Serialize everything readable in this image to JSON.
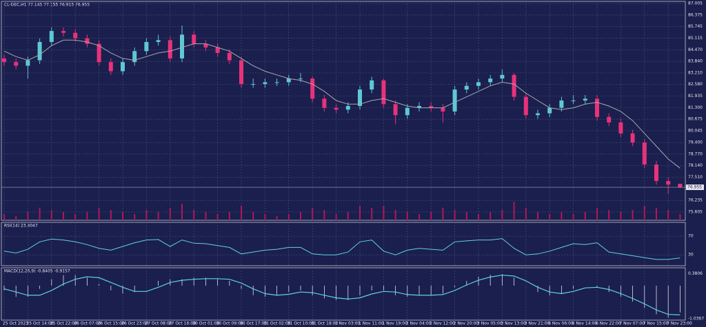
{
  "chart_data": {
    "type": "candlestick",
    "title": "CL-DEC,H1  77.145 77.155 76.915 76.955",
    "categories": [
      "25 Oct 2023",
      null,
      "25 Oct 14:00",
      null,
      "25 Oct 22:00",
      null,
      "26 Oct 07:00",
      null,
      "26 Oct 15:00",
      null,
      "26 Oct 23:00",
      null,
      "27 Oct 08:00",
      null,
      "27 Oct 16:00",
      null,
      "30 Oct 01:00",
      null,
      "30 Oct 09:00",
      null,
      "30 Oct 17:00",
      null,
      "31 Oct 02:00",
      null,
      "31 Oct 10:00",
      null,
      "31 Oct 18:00",
      null,
      "1 Nov 03:00",
      null,
      "1 Nov 11:00",
      null,
      "1 Nov 19:00",
      null,
      "2 Nov 04:00",
      null,
      "2 Nov 12:00",
      null,
      "2 Nov 20:00",
      null,
      "3 Nov 05:00",
      null,
      "3 Nov 13:00",
      null,
      "3 Nov 21:00",
      null,
      "6 Nov 06:00",
      null,
      "6 Nov 14:00",
      null,
      "6 Nov 22:00",
      null,
      "7 Nov 07:00",
      null,
      "7 Nov 15:00",
      null,
      "7 Nov 23:00",
      null
    ],
    "open": [
      84.0,
      83.8,
      83.6,
      83.9,
      84.9,
      85.5,
      85.4,
      85.1,
      84.8,
      83.8,
      83.3,
      83.8,
      84.4,
      84.9,
      85.0,
      84.0,
      85.3,
      84.8,
      84.6,
      84.3,
      83.9,
      82.6,
      82.6,
      82.7,
      82.7,
      82.9,
      82.9,
      81.8,
      81.3,
      81.2,
      81.4,
      82.3,
      82.8,
      81.5,
      80.9,
      81.3,
      81.4,
      81.3,
      81.1,
      82.3,
      82.5,
      82.7,
      82.9,
      83.1,
      81.9,
      80.9,
      81.0,
      81.3,
      81.7,
      81.7,
      81.8,
      80.8,
      80.5,
      79.9,
      79.4,
      78.2,
      77.3,
      77.145
    ],
    "high": [
      84.2,
      84.0,
      84.1,
      85.1,
      85.7,
      85.7,
      85.6,
      85.3,
      85.0,
      84.0,
      84.0,
      84.6,
      85.1,
      85.3,
      85.2,
      85.8,
      85.5,
      85.0,
      84.8,
      84.5,
      84.1,
      82.9,
      82.9,
      82.9,
      83.1,
      83.2,
      83.0,
      82.0,
      81.5,
      81.6,
      82.5,
      83.0,
      82.9,
      81.7,
      81.5,
      81.6,
      81.6,
      81.5,
      82.5,
      82.7,
      82.9,
      83.1,
      83.4,
      83.2,
      82.1,
      81.2,
      81.5,
      81.9,
      82.0,
      82.0,
      82.0,
      81.0,
      80.7,
      80.1,
      79.6,
      78.4,
      77.5,
      77.155
    ],
    "low": [
      83.6,
      83.4,
      82.9,
      83.7,
      84.7,
      85.2,
      84.9,
      84.6,
      83.6,
      83.1,
      83.1,
      83.6,
      84.2,
      84.7,
      83.8,
      83.8,
      84.6,
      84.4,
      84.1,
      83.7,
      82.4,
      82.4,
      82.4,
      82.5,
      82.5,
      82.7,
      81.6,
      81.1,
      81.0,
      81.0,
      81.2,
      82.1,
      81.3,
      80.4,
      80.7,
      81.1,
      81.1,
      80.5,
      80.9,
      82.1,
      82.3,
      82.5,
      82.7,
      81.7,
      80.7,
      80.7,
      80.8,
      81.1,
      81.5,
      81.5,
      80.6,
      80.3,
      79.7,
      79.2,
      78.0,
      77.1,
      76.6,
      76.915
    ],
    "close": [
      83.8,
      83.6,
      83.9,
      84.9,
      85.5,
      85.4,
      85.1,
      84.8,
      83.8,
      83.3,
      83.8,
      84.4,
      84.9,
      85.0,
      84.0,
      85.3,
      84.8,
      84.6,
      84.3,
      83.9,
      82.6,
      82.6,
      82.7,
      82.7,
      82.9,
      82.9,
      81.8,
      81.3,
      81.2,
      81.4,
      82.3,
      82.8,
      81.5,
      80.9,
      81.3,
      81.4,
      81.3,
      81.1,
      82.3,
      82.5,
      82.7,
      82.9,
      83.1,
      81.9,
      80.9,
      81.0,
      81.3,
      81.7,
      81.7,
      81.8,
      80.8,
      80.5,
      79.9,
      79.4,
      78.2,
      77.3,
      77.1,
      76.955
    ],
    "up_color": "#5ec8d3",
    "down_color": "#e8327a",
    "ylim": [
      75.15,
      87.12
    ],
    "yticks": [
      87.005,
      86.375,
      85.745,
      85.115,
      {
        "value": 84.47,
        "label": "84.470"
      },
      {
        "value": 83.84,
        "label": "83.840"
      },
      {
        "value": 83.21,
        "label": "83.210"
      },
      {
        "value": 82.58,
        "label": "82.580"
      },
      81.935,
      {
        "value": 81.3,
        "label": "81.300"
      },
      80.675,
      80.045,
      {
        "value": 79.4,
        "label": "79.400"
      },
      {
        "value": 78.77,
        "label": "78.770"
      },
      {
        "value": 78.14,
        "label": "78.140"
      },
      {
        "value": 77.51,
        "label": "77.510"
      },
      76.235,
      75.605
    ],
    "grid": true,
    "ma": {
      "color": "#a8a8b4",
      "values": [
        84.4,
        84.1,
        83.9,
        84.2,
        84.7,
        85.0,
        85.0,
        84.9,
        84.7,
        84.3,
        84.0,
        83.9,
        84.1,
        84.3,
        84.4,
        84.6,
        84.8,
        84.8,
        84.6,
        84.4,
        84.0,
        83.6,
        83.3,
        83.1,
        82.9,
        82.8,
        82.6,
        82.2,
        81.7,
        81.5,
        81.5,
        81.7,
        81.8,
        81.6,
        81.4,
        81.3,
        81.3,
        81.3,
        81.6,
        81.9,
        82.2,
        82.5,
        82.7,
        82.6,
        82.1,
        81.7,
        81.3,
        81.2,
        81.3,
        81.5,
        81.6,
        81.4,
        81.1,
        80.6,
        79.9,
        79.2,
        78.5,
        78.0
      ]
    },
    "volume": {
      "color": "#b0185a",
      "values": [
        3,
        2,
        4,
        6,
        5,
        4,
        3,
        4,
        6,
        5,
        4,
        3,
        5,
        4,
        6,
        8,
        5,
        4,
        3,
        4,
        7,
        4,
        3,
        2,
        3,
        4,
        6,
        5,
        3,
        4,
        7,
        6,
        7,
        5,
        4,
        3,
        4,
        6,
        5,
        4,
        3,
        4,
        5,
        9,
        6,
        4,
        3,
        4,
        3,
        4,
        6,
        5,
        4,
        5,
        7,
        6,
        5,
        3
      ]
    },
    "rsi": {
      "title": "RSI(14) 23.4047",
      "color": "#5fd3e0",
      "ylim": [
        5,
        100
      ],
      "yticks": [
        70,
        30
      ],
      "values": [
        38,
        34,
        42,
        58,
        64,
        62,
        58,
        52,
        44,
        40,
        48,
        56,
        62,
        63,
        48,
        62,
        55,
        54,
        50,
        46,
        32,
        36,
        40,
        42,
        46,
        46,
        32,
        30,
        30,
        36,
        58,
        62,
        38,
        30,
        40,
        44,
        42,
        40,
        58,
        60,
        62,
        62,
        65,
        44,
        30,
        32,
        38,
        46,
        54,
        52,
        56,
        36,
        32,
        28,
        24,
        20,
        20,
        23.4047
      ]
    },
    "macd": {
      "title": "MACD(12,26,9) -0.8405 -0.9157",
      "color": "#5fd3e0",
      "hist_color": "#e0e0ea",
      "ylim": [
        -1.08,
        0.56
      ],
      "yticks": [
        0.3806,
        -1.0367
      ],
      "histogram": [
        -0.15,
        -0.35,
        -0.35,
        -0.1,
        0.2,
        0.33,
        0.33,
        0.25,
        0.05,
        -0.15,
        -0.25,
        -0.2,
        0.0,
        0.15,
        0.2,
        0.2,
        0.25,
        0.25,
        0.2,
        0.15,
        -0.1,
        -0.3,
        -0.35,
        -0.3,
        -0.2,
        -0.15,
        -0.3,
        -0.4,
        -0.45,
        -0.45,
        -0.3,
        -0.15,
        -0.15,
        -0.3,
        -0.35,
        -0.3,
        -0.3,
        -0.25,
        -0.05,
        0.15,
        0.28,
        0.34,
        0.36,
        0.25,
        0.0,
        -0.2,
        -0.3,
        -0.25,
        -0.1,
        0.0,
        -0.05,
        -0.2,
        -0.35,
        -0.5,
        -0.7,
        -0.9,
        -1.0,
        -0.8405
      ],
      "signal": [
        -0.1,
        -0.2,
        -0.3,
        -0.3,
        -0.15,
        0.05,
        0.2,
        0.28,
        0.25,
        0.1,
        -0.05,
        -0.18,
        -0.18,
        -0.05,
        0.1,
        0.17,
        0.2,
        0.22,
        0.22,
        0.2,
        0.08,
        -0.1,
        -0.25,
        -0.3,
        -0.27,
        -0.2,
        -0.22,
        -0.3,
        -0.38,
        -0.42,
        -0.38,
        -0.26,
        -0.18,
        -0.2,
        -0.28,
        -0.3,
        -0.3,
        -0.28,
        -0.15,
        0.02,
        0.17,
        0.27,
        0.33,
        0.3,
        0.15,
        -0.05,
        -0.2,
        -0.25,
        -0.18,
        -0.07,
        -0.05,
        -0.12,
        -0.25,
        -0.4,
        -0.57,
        -0.76,
        -0.9,
        -0.9157
      ]
    }
  }
}
